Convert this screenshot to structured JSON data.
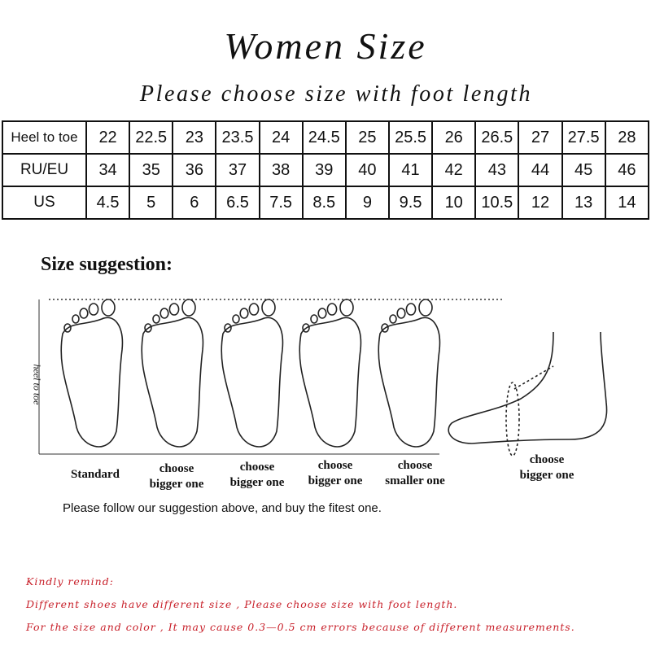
{
  "title": "Women Size",
  "subtitle": "Please choose size with foot length",
  "size_table": {
    "rows": [
      {
        "label": "Heel to toe",
        "values": [
          "22",
          "22.5",
          "23",
          "23.5",
          "24",
          "24.5",
          "25",
          "25.5",
          "26",
          "26.5",
          "27",
          "27.5",
          "28"
        ]
      },
      {
        "label": "RU/EU",
        "values": [
          "34",
          "35",
          "36",
          "37",
          "38",
          "39",
          "40",
          "41",
          "42",
          "43",
          "44",
          "45",
          "46"
        ]
      },
      {
        "label": "US",
        "values": [
          "4.5",
          "5",
          "6",
          "6.5",
          "7.5",
          "8.5",
          "9",
          "9.5",
          "10",
          "10.5",
          "12",
          "13",
          "14"
        ]
      }
    ]
  },
  "suggestion": {
    "heading": "Size suggestion:",
    "axis_label": "heel to toe",
    "captions": [
      {
        "line1": "Standard",
        "line2": ""
      },
      {
        "line1": "choose",
        "line2": "bigger one"
      },
      {
        "line1": "choose",
        "line2": "bigger one"
      },
      {
        "line1": "choose",
        "line2": "bigger one"
      },
      {
        "line1": "choose",
        "line2": "smaller one"
      },
      {
        "line1": "choose",
        "line2": "bigger one"
      }
    ],
    "follow_text": "Please follow our suggestion above, and buy the fitest one."
  },
  "remind": {
    "heading": "Kindly remind:",
    "line1": "Different shoes have different size , Please choose size with foot length.",
    "line2": "For the size and color , It may cause 0.3—0.5 cm errors because of different measurements."
  },
  "colors": {
    "remind_text": "#c8202a"
  }
}
